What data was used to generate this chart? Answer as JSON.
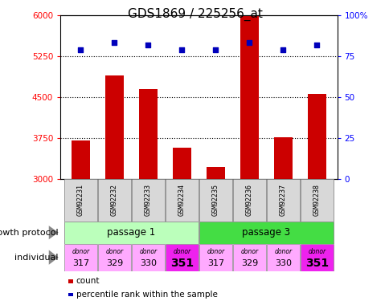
{
  "title": "GDS1869 / 225256_at",
  "samples": [
    "GSM92231",
    "GSM92232",
    "GSM92233",
    "GSM92234",
    "GSM92235",
    "GSM92236",
    "GSM92237",
    "GSM92238"
  ],
  "counts": [
    3700,
    4900,
    4650,
    3580,
    3220,
    5980,
    3760,
    4560
  ],
  "percentiles": [
    79,
    83,
    82,
    79,
    79,
    83,
    79,
    82
  ],
  "ymin": 3000,
  "ymax": 6000,
  "yticks": [
    3000,
    3750,
    4500,
    5250,
    6000
  ],
  "y2min": 0,
  "y2max": 100,
  "y2ticks": [
    0,
    25,
    50,
    75,
    100
  ],
  "bar_color": "#cc0000",
  "dot_color": "#0000bb",
  "passage1_color": "#bbffbb",
  "passage3_color": "#44dd44",
  "donor_light_color": "#ffaaff",
  "donor_dark_color": "#ee22ee",
  "donors": [
    "317",
    "329",
    "330",
    "351",
    "317",
    "329",
    "330",
    "351"
  ],
  "donor_is_dark": [
    false,
    false,
    false,
    true,
    false,
    false,
    false,
    true
  ],
  "groups": [
    "passage 1",
    "passage 3"
  ],
  "title_fontsize": 11,
  "tick_fontsize": 7.5,
  "label_fontsize": 8,
  "sample_label_fontsize": 6,
  "legend_fontsize": 7.5
}
